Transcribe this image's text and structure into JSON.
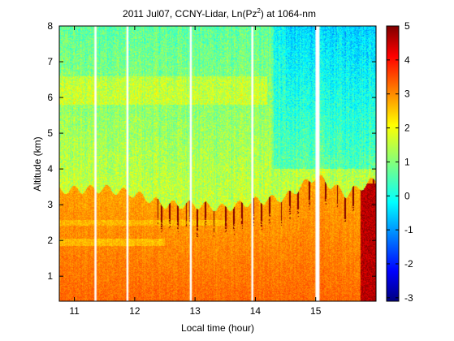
{
  "chart_data": {
    "type": "heatmap",
    "title": "2011 Jul07, CCNY-Lidar, Ln(Pz",
    "title_superscript": "2",
    "title_suffix": ") at 1064-nm",
    "xlabel": "Local time (hour)",
    "ylabel": "Altitude (km)",
    "xlim": [
      10.75,
      16.0
    ],
    "ylim": [
      0.3,
      8.0
    ],
    "x_ticks": [
      11,
      12,
      13,
      14,
      15
    ],
    "y_ticks": [
      1,
      2,
      3,
      4,
      5,
      6,
      7,
      8
    ],
    "colorbar": {
      "colormap": "jet",
      "range": [
        -3.1,
        5
      ],
      "ticks": [
        5,
        4,
        3,
        2,
        1,
        0,
        -1,
        -2,
        -3
      ]
    },
    "data_gaps_hours": [
      11.35,
      11.88,
      12.93,
      13.95,
      15.03
    ],
    "summary": {
      "boundary_layer_top_km": [
        [
          10.75,
          3.4
        ],
        [
          11.5,
          3.45
        ],
        [
          12.0,
          3.3
        ],
        [
          12.5,
          3.0
        ],
        [
          13.0,
          3.0
        ],
        [
          13.5,
          2.9
        ],
        [
          14.0,
          3.1
        ],
        [
          14.5,
          3.2
        ],
        [
          15.0,
          3.8
        ],
        [
          15.5,
          3.3
        ],
        [
          16.0,
          3.7
        ]
      ],
      "free_troposphere_value": 0.9,
      "boundary_layer_value": 2.7,
      "surface_value": 3.2,
      "cloud_value": 5
    }
  }
}
